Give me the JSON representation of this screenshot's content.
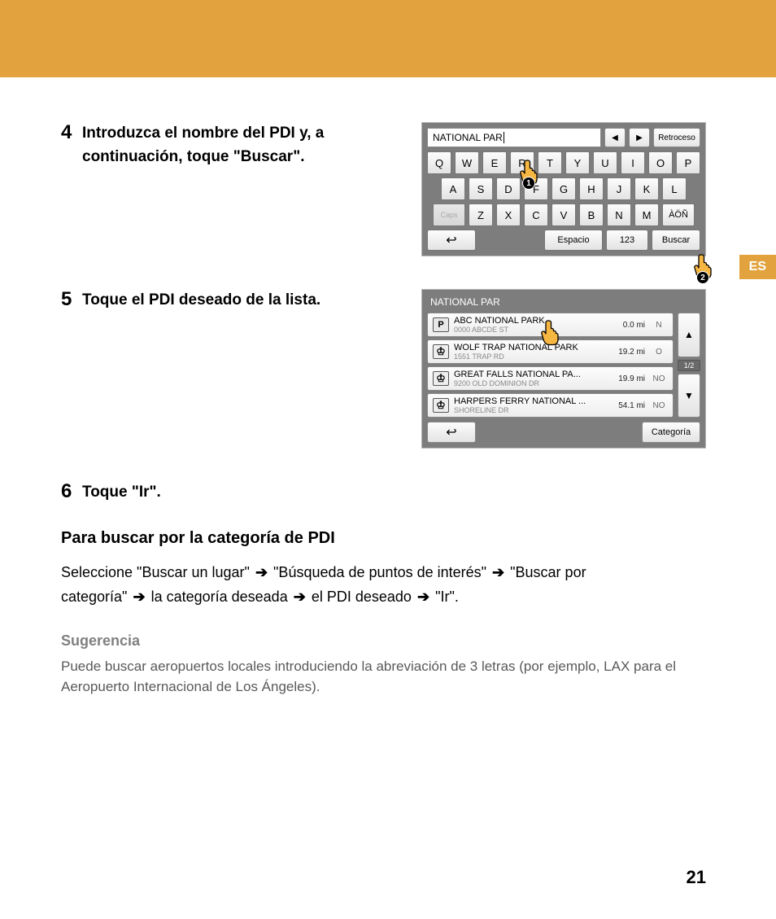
{
  "page": {
    "lang_tab": "ES",
    "number": "21",
    "topbar_color": "#e2a33e"
  },
  "steps": {
    "s4": {
      "num": "4",
      "title": "Introduzca el nombre del PDI y, a continuación, toque \"Buscar\"."
    },
    "s5": {
      "num": "5",
      "title": "Toque el PDI deseado de la lista."
    },
    "s6": {
      "num": "6",
      "title": "Toque \"Ir\"."
    }
  },
  "keyboard": {
    "input_value": "NATIONAL PAR",
    "btn_back": "Retroceso",
    "arrow_left": "◀",
    "arrow_right": "▶",
    "row1": [
      "Q",
      "W",
      "E",
      "R",
      "T",
      "Y",
      "U",
      "I",
      "O",
      "P"
    ],
    "row2": [
      "A",
      "S",
      "D",
      "F",
      "G",
      "H",
      "J",
      "K",
      "L"
    ],
    "caps": "Caps",
    "row3": [
      "Z",
      "X",
      "C",
      "V",
      "B",
      "N",
      "M"
    ],
    "accent": "ÀÖÑ",
    "return_glyph": "↩",
    "space": "Espacio",
    "numbers": "123",
    "search": "Buscar",
    "hand1": "1",
    "hand2": "2"
  },
  "list": {
    "title": "NATIONAL PAR",
    "items": [
      {
        "icon": "P",
        "name": "ABC NATIONAL PARK",
        "addr": "0000 ABCDE ST",
        "dist": "0.0 mi",
        "dir": "N"
      },
      {
        "icon": "♔",
        "name": "WOLF TRAP NATIONAL PARK",
        "addr": "1551 TRAP RD",
        "dist": "19.2 mi",
        "dir": "O"
      },
      {
        "icon": "♔",
        "name": "GREAT FALLS NATIONAL PA...",
        "addr": "9200 OLD DOMINION DR",
        "dist": "19.9 mi",
        "dir": "NO"
      },
      {
        "icon": "♔",
        "name": "HARPERS FERRY NATIONAL ...",
        "addr": "SHORELINE DR",
        "dist": "54.1 mi",
        "dir": "NO"
      }
    ],
    "page": "1/2",
    "up": "▲",
    "down": "▼",
    "return_glyph": "↩",
    "category": "Categoría"
  },
  "section": {
    "heading": "Para buscar por la categoría de PDI",
    "path1a": "Seleccione \"Buscar un lugar\"",
    "path1b": "\"Búsqueda de puntos de interés\"",
    "path1c": "\"Buscar por",
    "path2a": "categoría\"",
    "path2b": "la categoría deseada",
    "path2c": "el PDI deseado",
    "path2d": "\"Ir\".",
    "arrow": "➔"
  },
  "tip": {
    "heading": "Sugerencia",
    "text": "Puede buscar aeropuertos locales introduciendo la abreviación de 3 letras (por ejemplo, LAX para el Aeropuerto Internacional de Los Ángeles)."
  }
}
